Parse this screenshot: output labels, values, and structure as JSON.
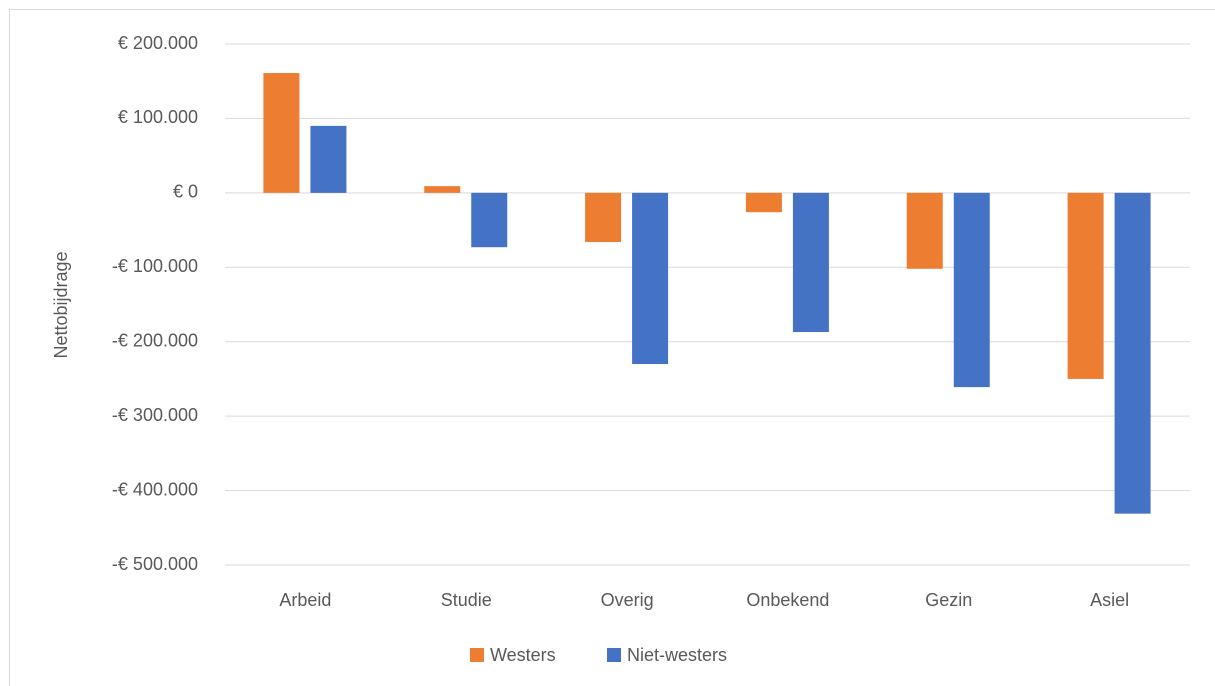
{
  "chart_data": {
    "type": "bar",
    "y_label": "Nettobijdrage",
    "categories": [
      "Arbeid",
      "Studie",
      "Overig",
      "Onbekend",
      "Gezin",
      "Asiel"
    ],
    "series": [
      {
        "name": "Westers",
        "color": "#ed7d31",
        "values": [
          161000,
          9000,
          -66000,
          -26000,
          -102000,
          -250000
        ]
      },
      {
        "name": "Niet-westers",
        "color": "#4472c4",
        "values": [
          90000,
          -73000,
          -230000,
          -187000,
          -261000,
          -431000
        ]
      }
    ],
    "ylim": [
      -500000,
      200000
    ],
    "yticks": [
      {
        "value": 200000,
        "label": "€ 200.000"
      },
      {
        "value": 100000,
        "label": "€ 100.000"
      },
      {
        "value": 0,
        "label": "€ 0"
      },
      {
        "value": -100000,
        "label": "-€ 100.000"
      },
      {
        "value": -200000,
        "label": "-€ 200.000"
      },
      {
        "value": -300000,
        "label": "-€ 300.000"
      },
      {
        "value": -400000,
        "label": "-€ 400.000"
      },
      {
        "value": -500000,
        "label": "-€ 500.000"
      }
    ],
    "grid": true,
    "legend": "bottom"
  }
}
